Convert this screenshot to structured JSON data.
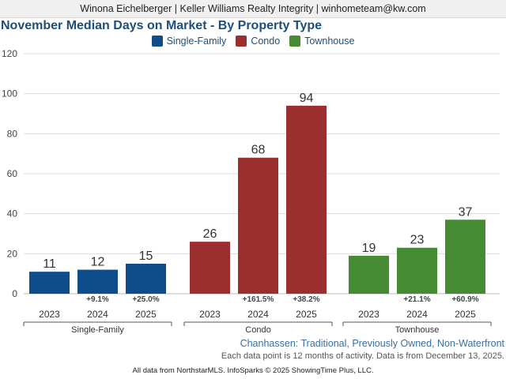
{
  "header": {
    "agent_line": "Winona Eichelberger | Keller Williams Realty Integrity | winhometeam@kw.com"
  },
  "chart_data": {
    "type": "bar",
    "title": "November Median Days on Market - By Property Type",
    "ylim": [
      0,
      120
    ],
    "yticks": [
      0,
      20,
      40,
      60,
      80,
      100,
      120
    ],
    "groups": [
      {
        "name": "Single-Family",
        "color": "#0f4d8a",
        "bars": [
          {
            "year": "2023",
            "value": 11,
            "change": ""
          },
          {
            "year": "2024",
            "value": 12,
            "change": "+9.1%"
          },
          {
            "year": "2025",
            "value": 15,
            "change": "+25.0%"
          }
        ]
      },
      {
        "name": "Condo",
        "color": "#9b2f2f",
        "bars": [
          {
            "year": "2023",
            "value": 26,
            "change": ""
          },
          {
            "year": "2024",
            "value": 68,
            "change": "+161.5%"
          },
          {
            "year": "2025",
            "value": 94,
            "change": "+38.2%"
          }
        ]
      },
      {
        "name": "Townhouse",
        "color": "#458b34",
        "bars": [
          {
            "year": "2023",
            "value": 19,
            "change": ""
          },
          {
            "year": "2024",
            "value": 23,
            "change": "+21.1%"
          },
          {
            "year": "2025",
            "value": 37,
            "change": "+60.9%"
          }
        ]
      }
    ]
  },
  "subtitle": "Chanhassen: Traditional, Previously Owned, Non-Waterfront",
  "note": "Each data point is 12 months of activity. Data is from December 13, 2025.",
  "footer": "All data from NorthstarMLS. InfoSparks © 2025 ShowingTime Plus, LLC."
}
